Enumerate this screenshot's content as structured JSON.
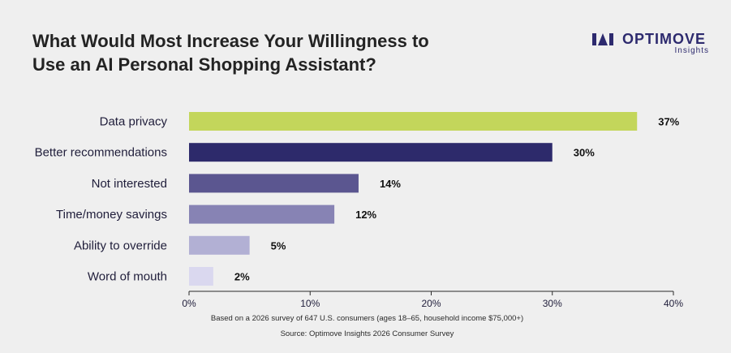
{
  "title_lines": [
    "What Would Most Increase Your Willingness to",
    "Use an AI Personal Shopping Assistant?"
  ],
  "logo": {
    "name": "OPTIMOVE",
    "sub": "Insights",
    "icon": "optimove-logo-icon",
    "color": "#2d2a6e"
  },
  "chart_data": {
    "type": "bar",
    "orientation": "horizontal",
    "categories": [
      "Data privacy",
      "Better recommendations",
      "Not interested",
      "Time/money savings",
      "Ability to override",
      "Word of mouth"
    ],
    "values": [
      37,
      30,
      14,
      12,
      5,
      2
    ],
    "value_labels": [
      "37%",
      "30%",
      "14%",
      "12%",
      "5%",
      "2%"
    ],
    "colors": [
      "#c3d65b",
      "#2d2a6b",
      "#5b5690",
      "#8783b4",
      "#b2b0d4",
      "#dad8ef"
    ],
    "xlim": [
      0,
      40
    ],
    "xticks": [
      0,
      10,
      20,
      30,
      40
    ],
    "xtick_labels": [
      "0%",
      "10%",
      "20%",
      "30%",
      "40%"
    ],
    "grid": false,
    "xlabel": "",
    "ylabel": ""
  },
  "footnotes": {
    "survey": "Based on a 2026 survey of 647 U.S. consumers (ages 18–65, household income $75,000+)",
    "source": "Source: Optimove Insights 2026 Consumer Survey"
  }
}
